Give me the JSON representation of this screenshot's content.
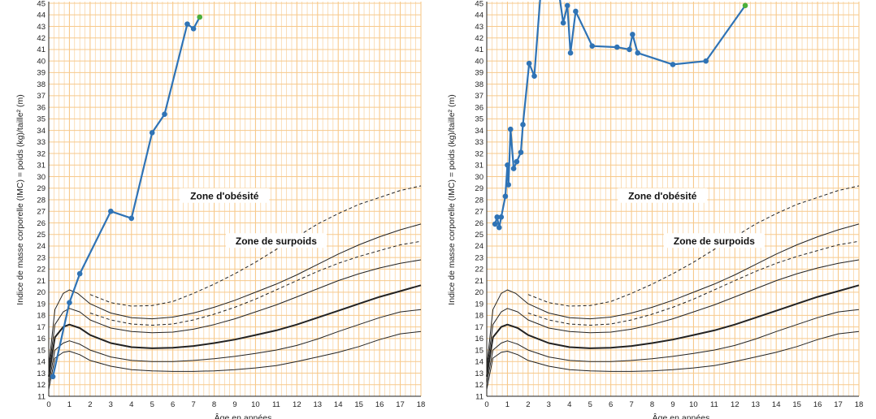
{
  "chart_data": [
    {
      "type": "line",
      "ylabel": "Indice de masse corporelle (IMC) = poids (kg)/taille² (m)",
      "xlabel": "Âge en années",
      "xlim": [
        0,
        18
      ],
      "ylim": [
        11,
        45
      ],
      "x_ticks": [
        "0",
        "1",
        "2",
        "3",
        "4",
        "5",
        "6",
        "7",
        "8",
        "9",
        "10",
        "11",
        "12",
        "13",
        "14",
        "15",
        "16",
        "17",
        "18"
      ],
      "y_ticks": [
        "11",
        "12",
        "13",
        "14",
        "15",
        "16",
        "17",
        "18",
        "19",
        "20",
        "21",
        "22",
        "23",
        "24",
        "25",
        "26",
        "27",
        "28",
        "29",
        "30",
        "31",
        "32",
        "33",
        "34",
        "35",
        "36",
        "37",
        "38",
        "39",
        "40",
        "41",
        "42",
        "43",
        "44",
        "45"
      ],
      "grid": true,
      "annotations": {
        "zone_obesity": "Zone d'obésité",
        "zone_overweight": "Zone de surpoids"
      },
      "colors": {
        "grid": "#f7c98b",
        "patient": "#2f73b5",
        "last_point": "#4caf3a",
        "curves": "#222222"
      },
      "series": [
        {
          "x": [
            0.2,
            1.0,
            1.5,
            3.0,
            4.0,
            5.0,
            5.6,
            6.7,
            7.0,
            7.3
          ],
          "y": [
            12.7,
            19.1,
            21.6,
            27.0,
            26.4,
            33.8,
            35.4,
            43.2,
            42.8,
            43.8
          ]
        }
      ]
    },
    {
      "type": "line",
      "ylabel": "Indice de masse corporelle (IMC) = poids (kg)/taille² (m)",
      "xlabel": "Âge en années",
      "xlim": [
        0,
        18
      ],
      "ylim": [
        11,
        45
      ],
      "x_ticks": [
        "0",
        "1",
        "2",
        "3",
        "4",
        "5",
        "6",
        "7",
        "8",
        "9",
        "10",
        "11",
        "12",
        "13",
        "14",
        "15",
        "16",
        "17",
        "18"
      ],
      "y_ticks": [
        "11",
        "12",
        "13",
        "14",
        "15",
        "16",
        "17",
        "18",
        "19",
        "20",
        "21",
        "22",
        "23",
        "24",
        "25",
        "26",
        "27",
        "28",
        "29",
        "30",
        "31",
        "32",
        "33",
        "34",
        "35",
        "36",
        "37",
        "38",
        "39",
        "40",
        "41",
        "42",
        "43",
        "44",
        "45"
      ],
      "grid": true,
      "annotations": {
        "zone_obesity": "Zone d'obésité",
        "zone_overweight": "Zone de surpoids"
      },
      "colors": {
        "grid": "#f7c98b",
        "patient": "#2f73b5",
        "last_point": "#4caf3a",
        "curves": "#222222"
      },
      "series": [
        {
          "x": [
            0.4,
            0.5,
            0.6,
            0.7,
            0.9,
            1.0,
            1.05,
            1.15,
            1.3,
            1.45,
            1.65,
            1.75,
            2.05,
            2.3,
            2.6,
            3.5,
            3.7,
            3.9,
            4.05,
            4.3,
            5.1,
            6.3,
            6.9,
            7.05,
            7.3,
            9.0,
            10.6,
            12.5
          ],
          "y": [
            25.9,
            26.5,
            25.6,
            26.5,
            28.3,
            31.0,
            29.3,
            34.1,
            30.7,
            31.3,
            32.1,
            34.5,
            39.8,
            38.7,
            45.8,
            45.8,
            43.3,
            44.8,
            40.7,
            44.3,
            41.3,
            41.2,
            41.0,
            42.3,
            40.7,
            39.7,
            40.0,
            44.8
          ]
        }
      ]
    }
  ]
}
